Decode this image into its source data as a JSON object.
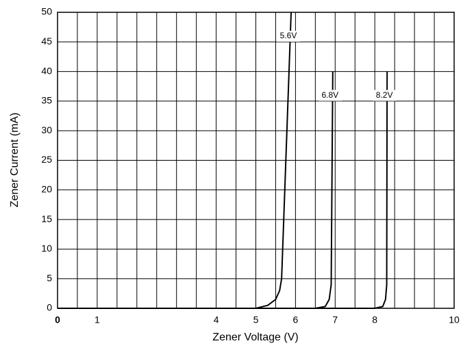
{
  "chart_data": {
    "type": "line",
    "x_label": "Zener Voltage (V)",
    "y_label": "Zener Current (mA)",
    "series": [
      {
        "name": "5.6V",
        "color": "#000000",
        "x": [
          0,
          5.0,
          5.3,
          5.5,
          5.6,
          5.65,
          5.89
        ],
        "values": [
          0,
          0,
          0.5,
          1.5,
          3,
          5,
          50
        ]
      },
      {
        "name": "6.8V",
        "color": "#000000",
        "x": [
          0,
          6.5,
          6.75,
          6.85,
          6.9,
          6.94
        ],
        "values": [
          0,
          0,
          0.3,
          1.5,
          4,
          40
        ]
      },
      {
        "name": "8.2V",
        "color": "#000000",
        "x": [
          0,
          8.0,
          8.2,
          8.27,
          8.3,
          8.31
        ],
        "values": [
          0,
          0,
          0.3,
          1.5,
          4,
          40
        ]
      }
    ],
    "xlim": [
      0,
      10
    ],
    "ylim": [
      0,
      50
    ],
    "xticks": [
      0,
      1,
      4,
      5,
      6,
      7,
      8,
      10
    ],
    "xgrid": [
      0.5,
      1.5,
      2,
      2.5,
      3,
      3.5,
      4.5,
      5.5,
      6.5,
      7.5,
      8.5,
      9,
      9.5
    ],
    "yticks": [
      0,
      5,
      10,
      15,
      20,
      25,
      30,
      35,
      40,
      45,
      50
    ],
    "grid": true
  }
}
